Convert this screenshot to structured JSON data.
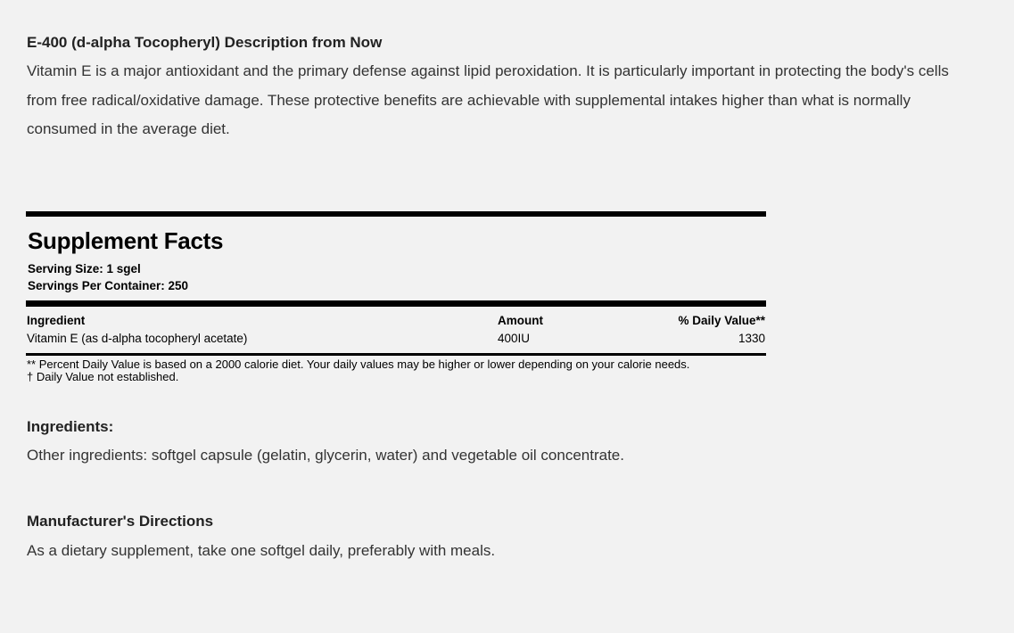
{
  "description": {
    "title": "E-400 (d-alpha Tocopheryl) Description from Now",
    "text": "Vitamin E is a major antioxidant and the primary defense against lipid peroxidation. It is particularly important in protecting the body's cells from free radical/oxidative damage. These protective benefits are achievable with supplemental intakes higher than what is normally consumed in the average diet."
  },
  "supplement_facts": {
    "title": "Supplement Facts",
    "serving_size": "Serving Size: 1 sgel",
    "servings_per_container": "Servings Per Container: 250",
    "headers": {
      "ingredient": "Ingredient",
      "amount": "Amount",
      "daily_value": "% Daily Value**"
    },
    "rows": [
      {
        "ingredient": "Vitamin E (as d-alpha tocopheryl acetate)",
        "amount": "400IU",
        "daily_value": "1330"
      }
    ],
    "footnote1": "** Percent Daily Value is based on a 2000 calorie diet. Your daily values may be higher or lower depending on your calorie needs.",
    "footnote2": "† Daily Value not established."
  },
  "ingredients": {
    "title": "Ingredients:",
    "text": "Other ingredients: softgel capsule (gelatin, glycerin, water) and vegetable oil concentrate."
  },
  "directions": {
    "title": "Manufacturer's Directions",
    "text": "As a dietary supplement, take one softgel daily, preferably with meals."
  }
}
